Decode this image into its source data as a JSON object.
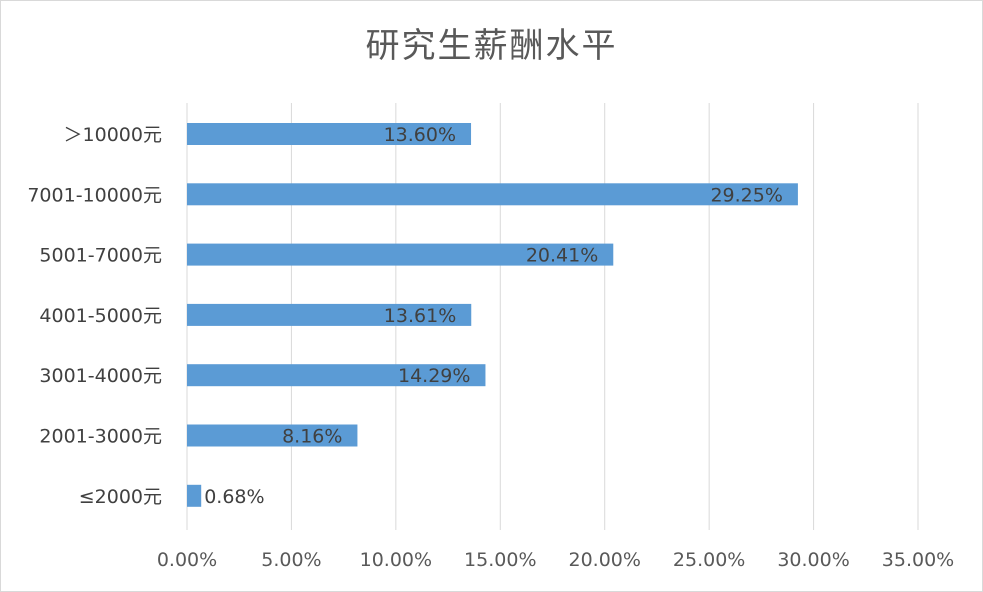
{
  "chart_data": {
    "type": "bar",
    "orientation": "horizontal",
    "title": "研究生薪酬水平",
    "categories": [
      "＞10000元",
      "7001-10000元",
      "5001-7000元",
      "4001-5000元",
      "3001-4000元",
      "2001-3000元",
      "≤2000元"
    ],
    "values": [
      13.6,
      29.25,
      20.41,
      13.61,
      14.29,
      8.16,
      0.68
    ],
    "value_labels": [
      "13.60%",
      "29.25%",
      "20.41%",
      "13.61%",
      "14.29%",
      "8.16%",
      "0.68%"
    ],
    "xlim": [
      0,
      35
    ],
    "xticks": [
      0,
      5,
      10,
      15,
      20,
      25,
      30,
      35
    ],
    "xtick_labels": [
      "0.00%",
      "5.00%",
      "10.00%",
      "15.00%",
      "20.00%",
      "25.00%",
      "30.00%",
      "35.00%"
    ],
    "grid": true,
    "legend": "none",
    "bar_color": "#5b9bd5"
  }
}
